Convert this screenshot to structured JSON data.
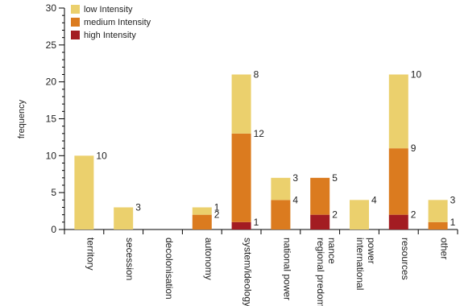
{
  "chart_data": {
    "type": "bar",
    "stacked": true,
    "ylabel": "frequency",
    "xlabel": "",
    "ylim": [
      0,
      30
    ],
    "yticks": [
      0,
      5,
      10,
      15,
      20,
      25,
      30
    ],
    "categories": [
      [
        "territory"
      ],
      [
        "secession"
      ],
      [
        "decolonisation"
      ],
      [
        "autonomy"
      ],
      [
        "system/ideology"
      ],
      [
        "national power"
      ],
      [
        "regional predom",
        "nance"
      ],
      [
        "international",
        "power"
      ],
      [
        "resources"
      ],
      [
        "other"
      ]
    ],
    "series": [
      {
        "name": "high Intensity",
        "color": "#a31c22",
        "values": [
          0,
          0,
          0,
          0,
          1,
          0,
          2,
          0,
          2,
          0
        ]
      },
      {
        "name": "medium Intensity",
        "color": "#db7b1f",
        "values": [
          0,
          0,
          0,
          2,
          12,
          4,
          5,
          0,
          9,
          1
        ]
      },
      {
        "name": "low Intensity",
        "color": "#ebd06d",
        "values": [
          10,
          3,
          0,
          1,
          8,
          3,
          0,
          4,
          10,
          3
        ]
      }
    ],
    "legend_position": "top-left"
  }
}
